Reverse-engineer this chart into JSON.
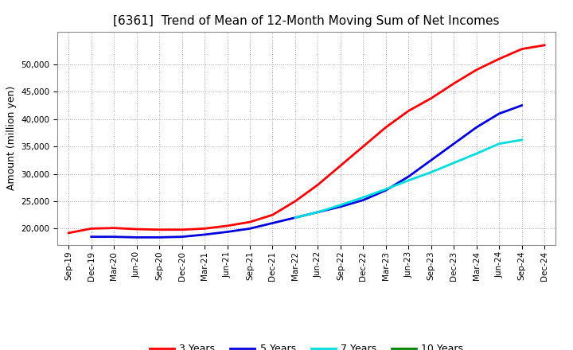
{
  "title": "[6361]  Trend of Mean of 12-Month Moving Sum of Net Incomes",
  "ylabel": "Amount (million yen)",
  "background_color": "#ffffff",
  "grid_color": "#aaaaaa",
  "x_labels": [
    "Sep-19",
    "Dec-19",
    "Mar-20",
    "Jun-20",
    "Sep-20",
    "Dec-20",
    "Mar-21",
    "Jun-21",
    "Sep-21",
    "Dec-21",
    "Mar-22",
    "Jun-22",
    "Sep-22",
    "Dec-22",
    "Mar-23",
    "Jun-23",
    "Sep-23",
    "Dec-23",
    "Mar-24",
    "Jun-24",
    "Sep-24",
    "Dec-24"
  ],
  "series": {
    "3 Years": {
      "color": "#ff0000",
      "x_indices": [
        0,
        1,
        2,
        3,
        4,
        5,
        6,
        7,
        8,
        9,
        10,
        11,
        12,
        13,
        14,
        15,
        16,
        17,
        18,
        19,
        20,
        21
      ],
      "values": [
        19200,
        20000,
        20100,
        19900,
        19800,
        19800,
        20000,
        20500,
        21200,
        22500,
        25000,
        28000,
        31500,
        35000,
        38500,
        41500,
        43800,
        46500,
        49000,
        51000,
        52800,
        53500
      ]
    },
    "5 Years": {
      "color": "#0000dd",
      "x_indices": [
        1,
        2,
        3,
        4,
        5,
        6,
        7,
        8,
        9,
        10,
        11,
        12,
        13,
        14,
        15,
        16,
        17,
        18,
        19,
        20
      ],
      "values": [
        18500,
        18500,
        18400,
        18400,
        18500,
        18900,
        19400,
        20000,
        21000,
        22000,
        23000,
        24000,
        25200,
        27000,
        29500,
        32500,
        35500,
        38500,
        41000,
        42500
      ]
    },
    "7 Years": {
      "color": "#00dddd",
      "x_indices": [
        10,
        11,
        12,
        13,
        14,
        15,
        16,
        17,
        18,
        19,
        20
      ],
      "values": [
        22000,
        23000,
        24300,
        25700,
        27200,
        28800,
        30300,
        32000,
        33700,
        35500,
        36200
      ]
    },
    "10 Years": {
      "color": "#008000",
      "x_indices": [],
      "values": []
    }
  },
  "ylim": [
    17000,
    56000
  ],
  "yticks": [
    20000,
    25000,
    30000,
    35000,
    40000,
    45000,
    50000
  ],
  "title_fontsize": 11,
  "axis_label_fontsize": 9,
  "tick_fontsize": 7.5,
  "legend_fontsize": 9,
  "line_width": 2.0
}
